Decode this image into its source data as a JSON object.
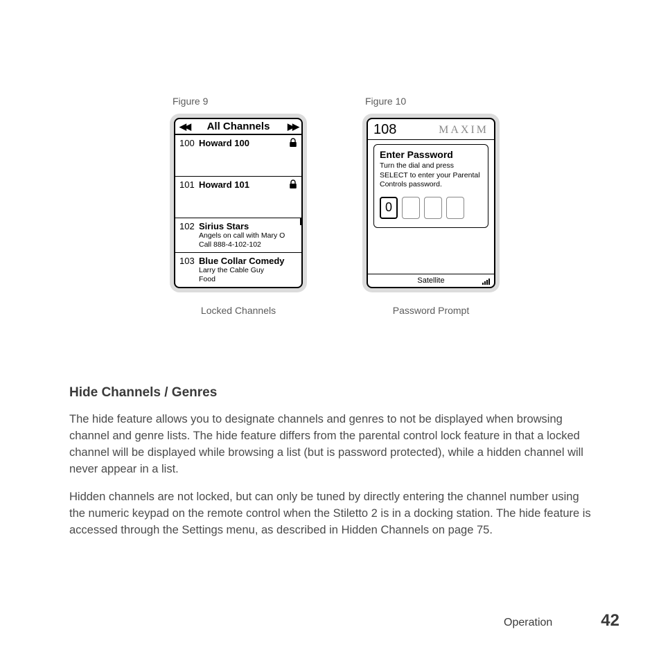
{
  "figures": {
    "left": {
      "label": "Figure 9",
      "caption": "Locked Channels",
      "header": "All Channels",
      "channels": [
        {
          "num": "100",
          "name": "Howard 100",
          "locked": true,
          "lines": []
        },
        {
          "num": "101",
          "name": "Howard 101",
          "locked": true,
          "lines": []
        },
        {
          "num": "102",
          "name": "Sirius Stars",
          "locked": false,
          "lines": [
            "Angels on call with Mary O",
            "Call 888-4-102-102"
          ]
        },
        {
          "num": "103",
          "name": "Blue Collar Comedy",
          "locked": false,
          "lines": [
            "Larry the Cable Guy",
            "Food"
          ]
        }
      ]
    },
    "right": {
      "label": "Figure 10",
      "caption": "Password Prompt",
      "channel": "108",
      "brand": "MAXIM",
      "title": "Enter Password",
      "instructions": "Turn the dial and press SELECT to enter your Parental Controls password.",
      "digits": [
        "0",
        "",
        "",
        ""
      ],
      "footer": "Satellite"
    }
  },
  "section": {
    "title": "Hide Channels / Genres",
    "p1": "The hide feature allows you to designate channels and genres to not be displayed when browsing channel and genre lists. The hide feature differs from the parental control lock feature in that a locked channel will be displayed while browsing a list (but is password protected), while a hidden channel will never appear in a list.",
    "p2": "Hidden channels are not locked, but can only be tuned by directly entering the channel number using the numeric keypad on the remote control when the Stiletto 2 is in a docking station. The hide feature is accessed through the Settings menu, as described in Hidden Channels on page 75."
  },
  "footer": {
    "section": "Operation",
    "page": "42"
  }
}
